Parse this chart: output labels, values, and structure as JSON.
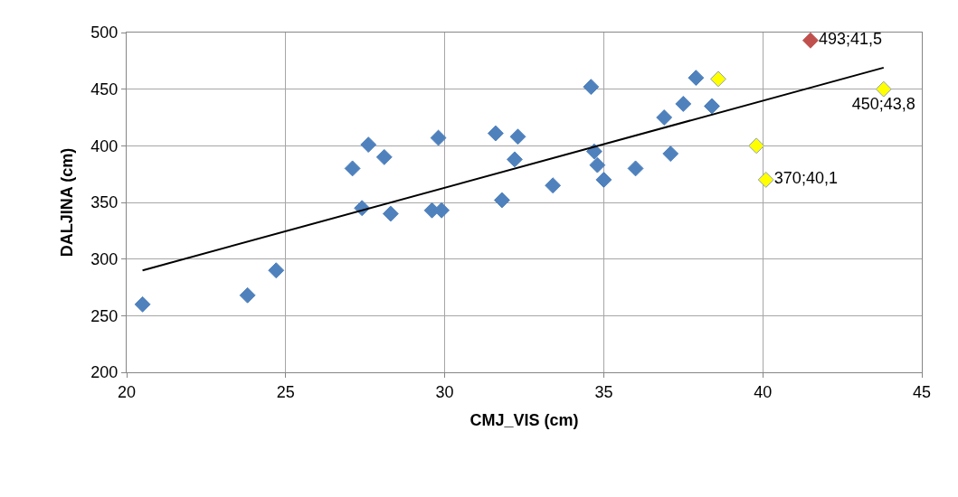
{
  "chart_data": {
    "type": "scatter",
    "xlabel": "CMJ_VIS (cm)",
    "ylabel": "DALJINA (cm)",
    "xlim": [
      20,
      45
    ],
    "xticks": [
      20,
      25,
      30,
      35,
      40,
      45
    ],
    "ylim": [
      200,
      500
    ],
    "yticks": [
      200,
      250,
      300,
      350,
      400,
      450,
      500
    ],
    "grid": true,
    "marker": "diamond",
    "series": [
      {
        "color": "#4f81bd",
        "x": [
          20.5,
          23.8,
          24.7,
          27.1,
          27.4,
          27.6,
          28.1,
          28.3,
          29.6,
          29.9,
          29.8,
          31.6,
          31.8,
          32.2,
          32.3,
          34.6,
          34.7,
          34.8,
          35.0,
          33.4,
          36.0,
          36.9,
          37.1,
          37.5,
          37.9,
          38.4
        ],
        "values": [
          260,
          268,
          290,
          380,
          345,
          401,
          390,
          340,
          343,
          343,
          407,
          411,
          352,
          388,
          408,
          452,
          395,
          383,
          370,
          365,
          380,
          425,
          393,
          437,
          460,
          435
        ]
      },
      {
        "color": "#ffff00",
        "x": [
          38.6,
          39.8,
          40.1,
          43.8
        ],
        "values": [
          459,
          400,
          370,
          450
        ],
        "value_labels": [
          null,
          null,
          "370;40,1",
          "450;43,8"
        ]
      },
      {
        "color": "#c0504d",
        "x": [
          41.5
        ],
        "values": [
          493
        ],
        "value_labels": [
          "493;41,5"
        ]
      },
      {
        "type": "line",
        "color": "#000000",
        "x": [
          20.5,
          43.8
        ],
        "values": [
          290,
          469
        ],
        "marker": "none",
        "line_style": "solid"
      }
    ]
  }
}
